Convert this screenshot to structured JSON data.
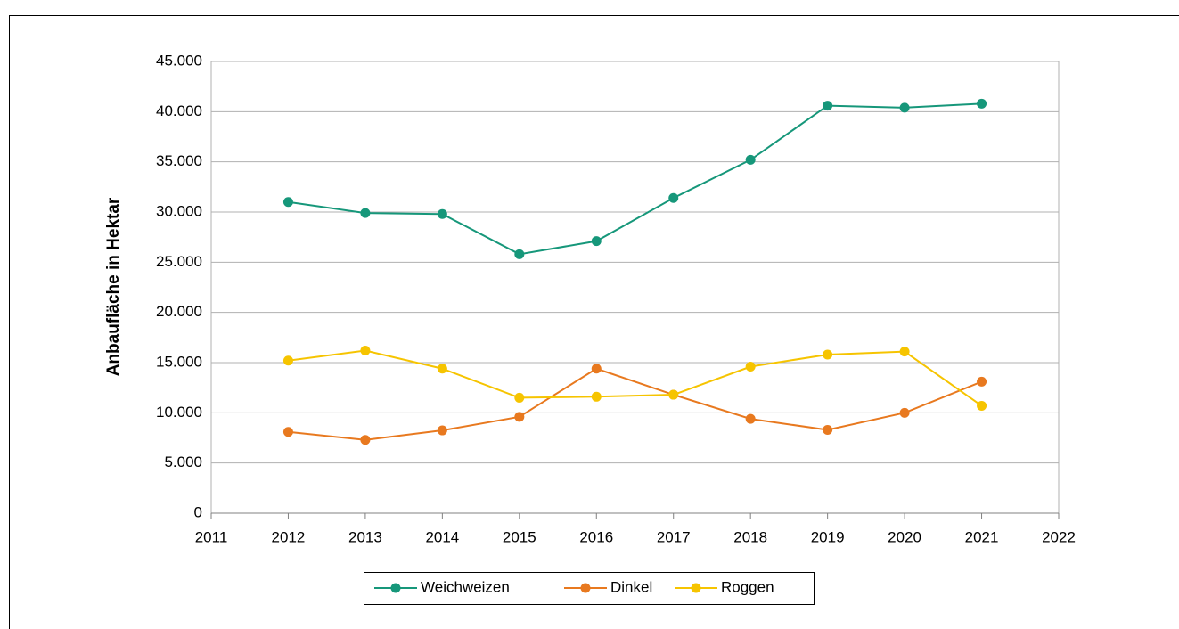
{
  "chart_data": {
    "type": "line",
    "ylabel": "Anbaufläche in Hektar",
    "x": [
      2012,
      2013,
      2014,
      2015,
      2016,
      2017,
      2018,
      2019,
      2020,
      2021
    ],
    "xlim": [
      2011,
      2022
    ],
    "xticks": [
      2011,
      2012,
      2013,
      2014,
      2015,
      2016,
      2017,
      2018,
      2019,
      2020,
      2021,
      2022
    ],
    "ylim": [
      0,
      45000
    ],
    "yticks": [
      0,
      {
        "value": 5000,
        "label": "5.000"
      },
      {
        "value": 10000,
        "label": "10.000"
      },
      {
        "value": 15000,
        "label": "15.000"
      },
      {
        "value": 20000,
        "label": "20.000"
      },
      {
        "value": 25000,
        "label": "25.000"
      },
      {
        "value": 30000,
        "label": "30.000"
      },
      {
        "value": 35000,
        "label": "35.000"
      },
      {
        "value": 40000,
        "label": "40.000"
      },
      {
        "value": 45000,
        "label": "45.000"
      }
    ],
    "grid": true,
    "legend": "bottom",
    "series": [
      {
        "name": "Weichweizen",
        "color": "#16977a",
        "values": [
          31000,
          29900,
          29800,
          25800,
          27100,
          31400,
          35200,
          40600,
          40400,
          40800
        ]
      },
      {
        "name": "Dinkel",
        "color": "#e8791f",
        "values": [
          8100,
          7300,
          8250,
          9600,
          14400,
          11800,
          9400,
          8300,
          10000,
          13100
        ]
      },
      {
        "name": "Roggen",
        "color": "#f6c400",
        "values": [
          15200,
          16200,
          14400,
          11500,
          11600,
          11800,
          14600,
          15800,
          16100,
          10700
        ]
      }
    ]
  }
}
